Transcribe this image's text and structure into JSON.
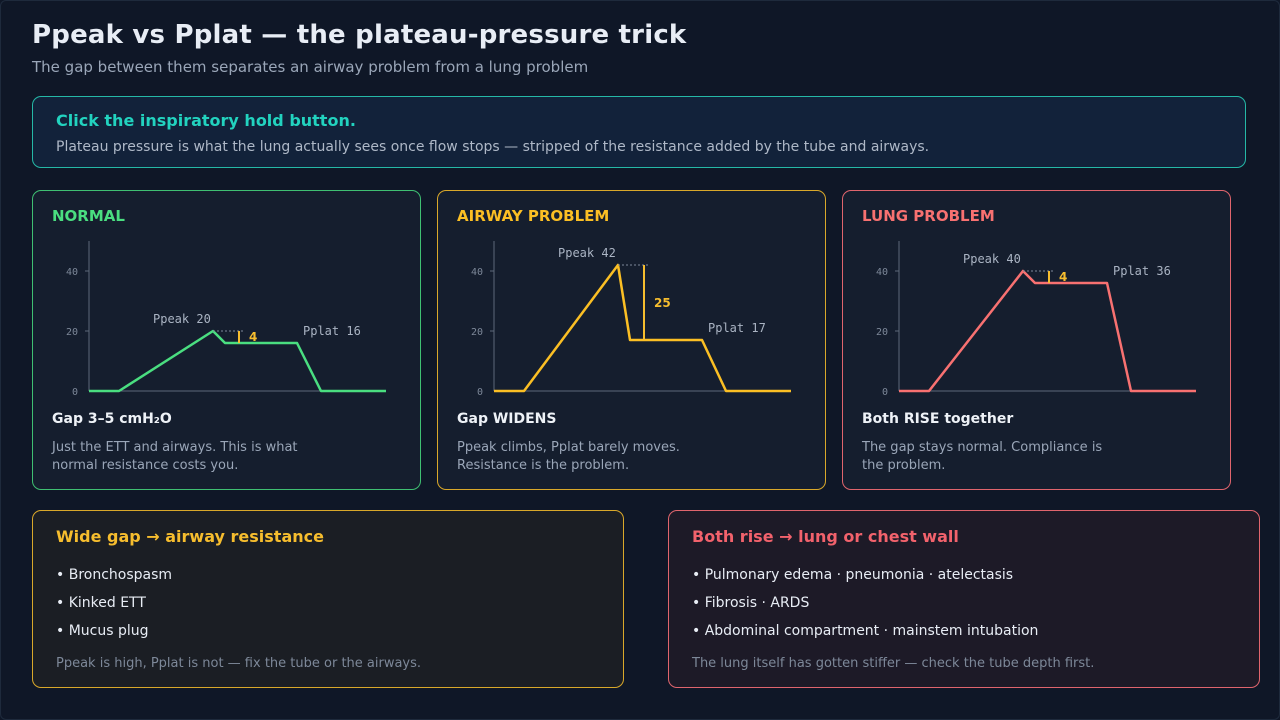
{
  "header": {
    "title": "Ppeak vs Pplat — the plateau-pressure trick",
    "subtitle": "The gap between them separates an airway problem from a lung problem"
  },
  "banner": {
    "headline": "Click the inspiratory hold button.",
    "body": "Plateau pressure is what the lung actually sees once flow stops — stripped of the resistance added by the tube and airways.",
    "accent_color": "#22d3bf"
  },
  "panels": [
    {
      "heading": "NORMAL",
      "color": "#4ade80",
      "gap_title": "Gap 3–5 cmH₂O",
      "description": "Just the ETT and airways. This is what normal resistance costs you.",
      "ppeak_label": "Ppeak 20",
      "pplat_label": "Pplat 16",
      "gap_value": "4",
      "ticks": [
        "40",
        "20",
        "0"
      ]
    },
    {
      "heading": "AIRWAY PROBLEM",
      "color": "#fbbf24",
      "gap_title": "Gap WIDENS",
      "description": "Ppeak climbs, Pplat barely moves. Resistance is the problem.",
      "ppeak_label": "Ppeak 42",
      "pplat_label": "Pplat 17",
      "gap_value": "25",
      "ticks": [
        "40",
        "20",
        "0"
      ]
    },
    {
      "heading": "LUNG PROBLEM",
      "color": "#f87171",
      "gap_title": "Both RISE together",
      "description": "The gap stays normal. Compliance is the problem.",
      "ppeak_label": "Ppeak 40",
      "pplat_label": "Pplat 36",
      "gap_value": "4",
      "ticks": [
        "40",
        "20",
        "0"
      ]
    }
  ],
  "chart_data": [
    {
      "type": "line",
      "title": "NORMAL",
      "ylim": [
        0,
        40
      ],
      "yticks": [
        0,
        20,
        40
      ],
      "series": [
        {
          "values": [
            0,
            0,
            20,
            16,
            16,
            0,
            0
          ]
        }
      ],
      "ppeak": 20,
      "pplat": 16,
      "gap": 4
    },
    {
      "type": "line",
      "title": "AIRWAY PROBLEM",
      "ylim": [
        0,
        40
      ],
      "yticks": [
        0,
        20,
        40
      ],
      "series": [
        {
          "values": [
            0,
            0,
            42,
            17,
            17,
            0,
            0
          ]
        }
      ],
      "ppeak": 42,
      "pplat": 17,
      "gap": 25
    },
    {
      "type": "line",
      "title": "LUNG PROBLEM",
      "ylim": [
        0,
        40
      ],
      "yticks": [
        0,
        20,
        40
      ],
      "series": [
        {
          "values": [
            0,
            0,
            40,
            36,
            36,
            0,
            0
          ]
        }
      ],
      "ppeak": 40,
      "pplat": 36,
      "gap": 4
    }
  ],
  "causes": {
    "airway": {
      "heading": "Wide gap → airway resistance",
      "items": [
        "• Bronchospasm",
        "• Kinked ETT",
        "• Mucus plug"
      ],
      "note": "Ppeak is high, Pplat is not — fix the tube or the airways."
    },
    "lung": {
      "heading": "Both rise → lung or chest wall",
      "items": [
        "• Pulmonary edema · pneumonia · atelectasis",
        "• Fibrosis · ARDS",
        "• Abdominal compartment · mainstem intubation"
      ],
      "note": "The lung itself has gotten stiffer — check the tube depth first."
    }
  },
  "colors": {
    "gap_marker": "#f6bd2e",
    "axis": "#5d6879"
  }
}
